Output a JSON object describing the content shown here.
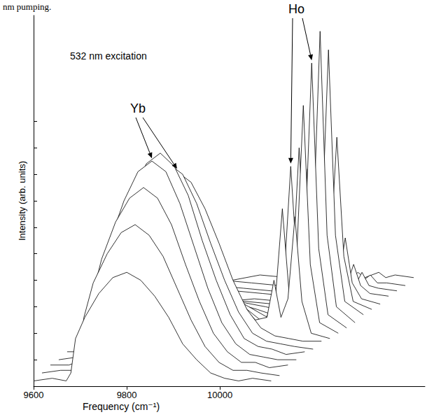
{
  "chart_data": {
    "type": "line",
    "title": "532 nm excitation",
    "caption": "nm pumping.",
    "x_label": "Frequency (cm⁻¹)",
    "y_label": "Intensity (arb. units)",
    "xlim": [
      9600,
      10440
    ],
    "xticks": [
      9600,
      9800,
      10000
    ],
    "ylim": [
      0,
      140
    ],
    "yticks": [
      0,
      10,
      20,
      30,
      40,
      50,
      60,
      70,
      80,
      90,
      100
    ],
    "tick_labels": "x",
    "grid": false,
    "color": "#000000",
    "annotations": [
      {
        "text": "Yb"
      },
      {
        "text": "Ho"
      }
    ],
    "series": [
      {
        "x": [
          9600,
          9640,
          9670,
          9680,
          9690,
          9710,
          9740,
          9770,
          9800,
          9830,
          9860,
          9890,
          9920,
          9950,
          9980,
          10010,
          10040,
          10070,
          10110
        ],
        "values": [
          2,
          3,
          2,
          5,
          18,
          26,
          35,
          41,
          43,
          40,
          34,
          26,
          16,
          10,
          5,
          3,
          2,
          3,
          2
        ]
      },
      {
        "x": [
          9618,
          9658,
          9688,
          9698,
          9708,
          9728,
          9758,
          9788,
          9818,
          9848,
          9878,
          9908,
          9938,
          9968,
          9998,
          10028,
          10058,
          10088,
          10128
        ],
        "values": [
          5,
          6,
          6,
          9,
          26,
          39,
          50,
          58,
          61,
          57,
          49,
          37,
          25,
          15,
          9,
          6,
          6,
          5,
          4
        ]
      },
      {
        "x": [
          9636,
          9676,
          9706,
          9716,
          9726,
          9746,
          9776,
          9806,
          9836,
          9866,
          9896,
          9926,
          9956,
          9986,
          10016,
          10046,
          10076,
          10106,
          10146
        ],
        "values": [
          8,
          8,
          10,
          12,
          34,
          48,
          62,
          71,
          75,
          71,
          61,
          46,
          32,
          20,
          13,
          9,
          9,
          7,
          8
        ]
      },
      {
        "x": [
          9654,
          9694,
          9724,
          9734,
          9744,
          9764,
          9794,
          9824,
          9854,
          9884,
          9914,
          9944,
          9974,
          10004,
          10034,
          10064,
          10094,
          10124,
          10164
        ],
        "values": [
          10,
          11,
          12,
          15,
          39,
          55,
          70,
          81,
          85,
          81,
          69,
          53,
          37,
          24,
          16,
          12,
          11,
          10,
          10
        ]
      },
      {
        "x": [
          9672,
          9712,
          9742,
          9752,
          9762,
          9782,
          9812,
          9842,
          9872,
          9902,
          9932,
          9962,
          9992,
          10022,
          10052,
          10082,
          10112,
          10142,
          10182
        ],
        "values": [
          13,
          13,
          15,
          18,
          42,
          58,
          72,
          84,
          88,
          83,
          72,
          55,
          40,
          27,
          18,
          15,
          14,
          12,
          13
        ]
      },
      {
        "x": [
          9690,
          9730,
          9760,
          9770,
          9780,
          9800,
          9830,
          9860,
          9890,
          9920,
          9950,
          9980,
          10010,
          10040,
          10070,
          10100,
          10130,
          10160,
          10200
        ],
        "values": [
          15,
          16,
          17,
          19,
          41,
          56,
          70,
          80,
          84,
          80,
          69,
          54,
          40,
          28,
          20,
          17,
          16,
          15,
          14
        ]
      },
      {
        "x": [
          9708,
          9748,
          9778,
          9788,
          9798,
          9818,
          9848,
          9878,
          9908,
          9938,
          9968,
          9998,
          10028,
          10058,
          10088,
          10118,
          10148,
          10178,
          10218
        ],
        "values": [
          17,
          18,
          19,
          21,
          42,
          55,
          68,
          77,
          81,
          77,
          67,
          54,
          40,
          29,
          22,
          19,
          18,
          17,
          17
        ]
      },
      {
        "x": [
          9726,
          9776,
          9811,
          9846,
          9906,
          9966,
          10026,
          10076,
          10101,
          10116,
          10131,
          10146,
          10161,
          10176,
          10196,
          10236
        ],
        "values": [
          18,
          19,
          26,
          41,
          51,
          48,
          35,
          25,
          26,
          40,
          26,
          33,
          64,
          32,
          20,
          18
        ]
      },
      {
        "x": [
          9744,
          9794,
          9829,
          9864,
          9924,
          9984,
          10044,
          10094,
          10119,
          10134,
          10149,
          10164,
          10179,
          10194,
          10214,
          10254
        ],
        "values": [
          20,
          21,
          25,
          35,
          42,
          40,
          31,
          24,
          33,
          67,
          34,
          46,
          106,
          46,
          24,
          20
        ]
      },
      {
        "x": [
          9762,
          9812,
          9847,
          9882,
          9942,
          10002,
          10062,
          10112,
          10137,
          10152,
          10167,
          10182,
          10197,
          10212,
          10232,
          10272
        ],
        "values": [
          22,
          23,
          26,
          32,
          37,
          36,
          30,
          25,
          39,
          83,
          41,
          53,
          122,
          52,
          27,
          22
        ]
      },
      {
        "x": [
          9780,
          9830,
          9865,
          9900,
          9960,
          10020,
          10080,
          10130,
          10155,
          10170,
          10185,
          10200,
          10215,
          10230,
          10250,
          10290
        ],
        "values": [
          24,
          25,
          26,
          30,
          33,
          32,
          29,
          26,
          41,
          90,
          44,
          58,
          134,
          57,
          30,
          24
        ]
      },
      {
        "x": [
          9798,
          9848,
          9883,
          9918,
          9978,
          10038,
          10098,
          10148,
          10173,
          10188,
          10203,
          10218,
          10233,
          10248,
          10268,
          10308
        ],
        "values": [
          27,
          27,
          28,
          31,
          32,
          32,
          30,
          28,
          41,
          82,
          43,
          57,
          127,
          57,
          32,
          27
        ]
      },
      {
        "x": [
          9816,
          9866,
          9901,
          9936,
          9996,
          10056,
          10116,
          10166,
          10191,
          10206,
          10221,
          10236,
          10251,
          10266,
          10286,
          10326
        ],
        "values": [
          29,
          30,
          30,
          31,
          33,
          32,
          31,
          30,
          38,
          64,
          40,
          48,
          94,
          49,
          32,
          29
        ]
      },
      {
        "x": [
          9834,
          9884,
          9919,
          9954,
          10014,
          10074,
          10134,
          10184,
          10209,
          10224,
          10239,
          10254,
          10269,
          10284,
          10304,
          10344
        ],
        "values": [
          32,
          31,
          32,
          33,
          32,
          33,
          32,
          31,
          34,
          43,
          35,
          39,
          56,
          39,
          33,
          31
        ]
      },
      {
        "x": [
          9852,
          9902,
          9937,
          9972,
          10032,
          10092,
          10152,
          10202,
          10227,
          10242,
          10257,
          10272,
          10287,
          10302,
          10322,
          10362
        ],
        "values": [
          34,
          35,
          34,
          35,
          36,
          35,
          34,
          35,
          35,
          40,
          36,
          38,
          46,
          38,
          35,
          34
        ]
      },
      {
        "x": [
          9870,
          9920,
          9955,
          9990,
          10050,
          10110,
          10170,
          10220,
          10245,
          10260,
          10275,
          10290,
          10305,
          10320,
          10340,
          10380
        ],
        "values": [
          36,
          37,
          36,
          38,
          37,
          36,
          37,
          36,
          37,
          40,
          38,
          38,
          43,
          38,
          37,
          36
        ]
      },
      {
        "x": [
          9888,
          9938,
          9973,
          10008,
          10068,
          10128,
          10188,
          10238,
          10263,
          10278,
          10293,
          10308,
          10323,
          10338,
          10358,
          10398
        ],
        "values": [
          39,
          38,
          39,
          40,
          39,
          38,
          40,
          39,
          38,
          41,
          39,
          40,
          42,
          39,
          39,
          38
        ]
      },
      {
        "x": [
          9906,
          9956,
          9991,
          10026,
          10086,
          10146,
          10206,
          10256,
          10281,
          10296,
          10311,
          10326,
          10341,
          10356,
          10376,
          10416
        ],
        "values": [
          41,
          42,
          41,
          40,
          42,
          41,
          42,
          41,
          40,
          43,
          41,
          42,
          43,
          41,
          42,
          41
        ]
      }
    ]
  }
}
